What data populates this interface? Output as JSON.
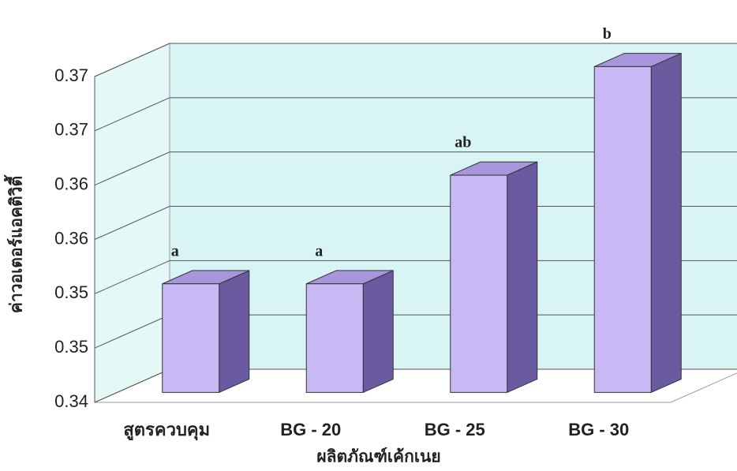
{
  "chart_data": {
    "type": "bar3d",
    "x_label": "ผลิตภัณฑ์เค้กเนย",
    "y_label": "ค่าวอเตอร์แอคติวิตี้",
    "categories": [
      "สูตรควบคุม",
      "BG - 20",
      "BG - 25",
      "BG - 30"
    ],
    "values": [
      0.35,
      0.35,
      0.36,
      0.37
    ],
    "annotations": [
      "a",
      "a",
      "ab",
      "b"
    ],
    "color": "#c8b8f4",
    "ylim": [
      0.34,
      0.37
    ],
    "yticks": [
      0.34,
      {
        "value": 0.345,
        "label": "0.35"
      },
      0.35,
      {
        "value": 0.355,
        "label": "0.36"
      },
      0.36,
      {
        "value": 0.365,
        "label": "0.37"
      },
      0.37
    ],
    "grid": true
  }
}
